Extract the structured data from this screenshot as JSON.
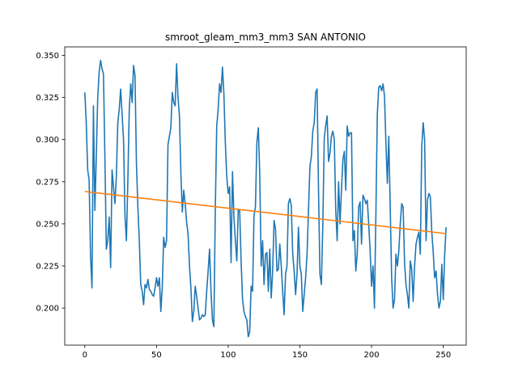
{
  "chart_data": {
    "type": "line",
    "title": "smroot_gleam_mm3_mm3 SAN ANTONIO",
    "xlabel": "",
    "ylabel": "",
    "xlim": [
      -14,
      266
    ],
    "ylim": [
      0.178,
      0.355
    ],
    "xticks": [
      0,
      50,
      100,
      150,
      200,
      250
    ],
    "yticks": [
      0.2,
      0.225,
      0.25,
      0.275,
      0.3,
      0.325,
      0.35
    ],
    "ytick_labels": [
      "0.200",
      "0.225",
      "0.250",
      "0.275",
      "0.300",
      "0.325",
      "0.350"
    ],
    "grid": false,
    "series": [
      {
        "color": "#1f77b4",
        "style": "line",
        "points": [
          [
            0,
            0.328
          ],
          [
            1,
            0.31
          ],
          [
            2,
            0.282
          ],
          [
            3,
            0.276
          ],
          [
            4,
            0.23
          ],
          [
            5,
            0.212
          ],
          [
            6,
            0.32
          ],
          [
            7,
            0.258
          ],
          [
            8,
            0.29
          ],
          [
            9,
            0.325
          ],
          [
            10,
            0.34
          ],
          [
            11,
            0.347
          ],
          [
            12,
            0.342
          ],
          [
            13,
            0.339
          ],
          [
            14,
            0.29
          ],
          [
            15,
            0.235
          ],
          [
            16,
            0.24
          ],
          [
            17,
            0.254
          ],
          [
            18,
            0.224
          ],
          [
            19,
            0.282
          ],
          [
            20,
            0.272
          ],
          [
            21,
            0.262
          ],
          [
            22,
            0.278
          ],
          [
            23,
            0.31
          ],
          [
            24,
            0.318
          ],
          [
            25,
            0.33
          ],
          [
            26,
            0.315
          ],
          [
            27,
            0.3
          ],
          [
            28,
            0.255
          ],
          [
            29,
            0.24
          ],
          [
            30,
            0.275
          ],
          [
            31,
            0.318
          ],
          [
            32,
            0.333
          ],
          [
            33,
            0.322
          ],
          [
            34,
            0.344
          ],
          [
            35,
            0.338
          ],
          [
            36,
            0.286
          ],
          [
            37,
            0.26
          ],
          [
            38,
            0.24
          ],
          [
            39,
            0.214
          ],
          [
            40,
            0.21
          ],
          [
            41,
            0.202
          ],
          [
            42,
            0.214
          ],
          [
            43,
            0.212
          ],
          [
            44,
            0.217
          ],
          [
            45,
            0.211
          ],
          [
            46,
            0.21
          ],
          [
            47,
            0.208
          ],
          [
            48,
            0.207
          ],
          [
            49,
            0.212
          ],
          [
            50,
            0.218
          ],
          [
            51,
            0.213
          ],
          [
            52,
            0.218
          ],
          [
            53,
            0.198
          ],
          [
            54,
            0.212
          ],
          [
            55,
            0.242
          ],
          [
            56,
            0.236
          ],
          [
            57,
            0.24
          ],
          [
            58,
            0.297
          ],
          [
            59,
            0.302
          ],
          [
            60,
            0.307
          ],
          [
            61,
            0.328
          ],
          [
            62,
            0.322
          ],
          [
            63,
            0.32
          ],
          [
            64,
            0.345
          ],
          [
            65,
            0.325
          ],
          [
            66,
            0.314
          ],
          [
            67,
            0.28
          ],
          [
            68,
            0.257
          ],
          [
            69,
            0.27
          ],
          [
            70,
            0.262
          ],
          [
            71,
            0.251
          ],
          [
            72,
            0.244
          ],
          [
            73,
            0.225
          ],
          [
            74,
            0.212
          ],
          [
            75,
            0.192
          ],
          [
            76,
            0.198
          ],
          [
            77,
            0.213
          ],
          [
            78,
            0.207
          ],
          [
            79,
            0.2
          ],
          [
            80,
            0.193
          ],
          [
            81,
            0.194
          ],
          [
            82,
            0.196
          ],
          [
            83,
            0.195
          ],
          [
            84,
            0.196
          ],
          [
            85,
            0.21
          ],
          [
            86,
            0.222
          ],
          [
            87,
            0.235
          ],
          [
            88,
            0.21
          ],
          [
            89,
            0.193
          ],
          [
            90,
            0.189
          ],
          [
            91,
            0.258
          ],
          [
            92,
            0.308
          ],
          [
            93,
            0.318
          ],
          [
            94,
            0.333
          ],
          [
            95,
            0.328
          ],
          [
            96,
            0.343
          ],
          [
            97,
            0.327
          ],
          [
            98,
            0.298
          ],
          [
            99,
            0.278
          ],
          [
            100,
            0.268
          ],
          [
            101,
            0.272
          ],
          [
            102,
            0.227
          ],
          [
            103,
            0.281
          ],
          [
            104,
            0.254
          ],
          [
            105,
            0.24
          ],
          [
            106,
            0.228
          ],
          [
            107,
            0.258
          ],
          [
            108,
            0.258
          ],
          [
            109,
            0.228
          ],
          [
            110,
            0.205
          ],
          [
            111,
            0.198
          ],
          [
            112,
            0.195
          ],
          [
            113,
            0.193
          ],
          [
            114,
            0.183
          ],
          [
            115,
            0.186
          ],
          [
            116,
            0.213
          ],
          [
            117,
            0.21
          ],
          [
            118,
            0.255
          ],
          [
            119,
            0.26
          ],
          [
            120,
            0.298
          ],
          [
            121,
            0.307
          ],
          [
            122,
            0.28
          ],
          [
            123,
            0.225
          ],
          [
            124,
            0.24
          ],
          [
            125,
            0.214
          ],
          [
            126,
            0.232
          ],
          [
            127,
            0.233
          ],
          [
            128,
            0.21
          ],
          [
            129,
            0.235
          ],
          [
            130,
            0.206
          ],
          [
            131,
            0.222
          ],
          [
            132,
            0.252
          ],
          [
            133,
            0.247
          ],
          [
            134,
            0.222
          ],
          [
            135,
            0.223
          ],
          [
            136,
            0.238
          ],
          [
            137,
            0.225
          ],
          [
            138,
            0.21
          ],
          [
            139,
            0.196
          ],
          [
            140,
            0.22
          ],
          [
            141,
            0.225
          ],
          [
            142,
            0.262
          ],
          [
            143,
            0.265
          ],
          [
            144,
            0.261
          ],
          [
            145,
            0.232
          ],
          [
            146,
            0.222
          ],
          [
            147,
            0.208
          ],
          [
            148,
            0.22
          ],
          [
            149,
            0.248
          ],
          [
            150,
            0.225
          ],
          [
            151,
            0.22
          ],
          [
            152,
            0.198
          ],
          [
            153,
            0.208
          ],
          [
            154,
            0.218
          ],
          [
            155,
            0.232
          ],
          [
            156,
            0.258
          ],
          [
            157,
            0.284
          ],
          [
            158,
            0.29
          ],
          [
            159,
            0.305
          ],
          [
            160,
            0.31
          ],
          [
            161,
            0.328
          ],
          [
            162,
            0.33
          ],
          [
            163,
            0.27
          ],
          [
            164,
            0.22
          ],
          [
            165,
            0.214
          ],
          [
            166,
            0.25
          ],
          [
            167,
            0.301
          ],
          [
            168,
            0.308
          ],
          [
            169,
            0.314
          ],
          [
            170,
            0.287
          ],
          [
            171,
            0.292
          ],
          [
            172,
            0.302
          ],
          [
            173,
            0.305
          ],
          [
            174,
            0.3
          ],
          [
            175,
            0.258
          ],
          [
            176,
            0.24
          ],
          [
            177,
            0.275
          ],
          [
            178,
            0.25
          ],
          [
            179,
            0.27
          ],
          [
            180,
            0.288
          ],
          [
            181,
            0.293
          ],
          [
            182,
            0.27
          ],
          [
            183,
            0.308
          ],
          [
            184,
            0.302
          ],
          [
            185,
            0.304
          ],
          [
            186,
            0.304
          ],
          [
            187,
            0.24
          ],
          [
            188,
            0.246
          ],
          [
            189,
            0.222
          ],
          [
            190,
            0.232
          ],
          [
            191,
            0.26
          ],
          [
            192,
            0.263
          ],
          [
            193,
            0.238
          ],
          [
            194,
            0.267
          ],
          [
            195,
            0.265
          ],
          [
            196,
            0.262
          ],
          [
            197,
            0.264
          ],
          [
            198,
            0.25
          ],
          [
            199,
            0.234
          ],
          [
            200,
            0.213
          ],
          [
            201,
            0.225
          ],
          [
            202,
            0.2
          ],
          [
            203,
            0.255
          ],
          [
            204,
            0.315
          ],
          [
            205,
            0.331
          ],
          [
            206,
            0.332
          ],
          [
            207,
            0.329
          ],
          [
            208,
            0.333
          ],
          [
            209,
            0.326
          ],
          [
            210,
            0.298
          ],
          [
            211,
            0.274
          ],
          [
            212,
            0.302
          ],
          [
            213,
            0.26
          ],
          [
            214,
            0.218
          ],
          [
            215,
            0.2
          ],
          [
            216,
            0.205
          ],
          [
            217,
            0.232
          ],
          [
            218,
            0.225
          ],
          [
            219,
            0.234
          ],
          [
            220,
            0.25
          ],
          [
            221,
            0.262
          ],
          [
            222,
            0.26
          ],
          [
            223,
            0.227
          ],
          [
            224,
            0.214
          ],
          [
            225,
            0.208
          ],
          [
            226,
            0.2
          ],
          [
            227,
            0.228
          ],
          [
            228,
            0.223
          ],
          [
            229,
            0.204
          ],
          [
            230,
            0.225
          ],
          [
            231,
            0.238
          ],
          [
            232,
            0.242
          ],
          [
            233,
            0.245
          ],
          [
            234,
            0.232
          ],
          [
            235,
            0.296
          ],
          [
            236,
            0.31
          ],
          [
            237,
            0.3
          ],
          [
            238,
            0.24
          ],
          [
            239,
            0.264
          ],
          [
            240,
            0.268
          ],
          [
            241,
            0.266
          ],
          [
            242,
            0.245
          ],
          [
            243,
            0.233
          ],
          [
            244,
            0.218
          ],
          [
            245,
            0.222
          ],
          [
            246,
            0.208
          ],
          [
            247,
            0.2
          ],
          [
            248,
            0.204
          ],
          [
            249,
            0.226
          ],
          [
            250,
            0.205
          ],
          [
            251,
            0.232
          ],
          [
            252,
            0.248
          ]
        ]
      },
      {
        "color": "#ff7f0e",
        "style": "line",
        "points": [
          [
            0,
            0.2692
          ],
          [
            252,
            0.2442
          ]
        ]
      }
    ]
  }
}
